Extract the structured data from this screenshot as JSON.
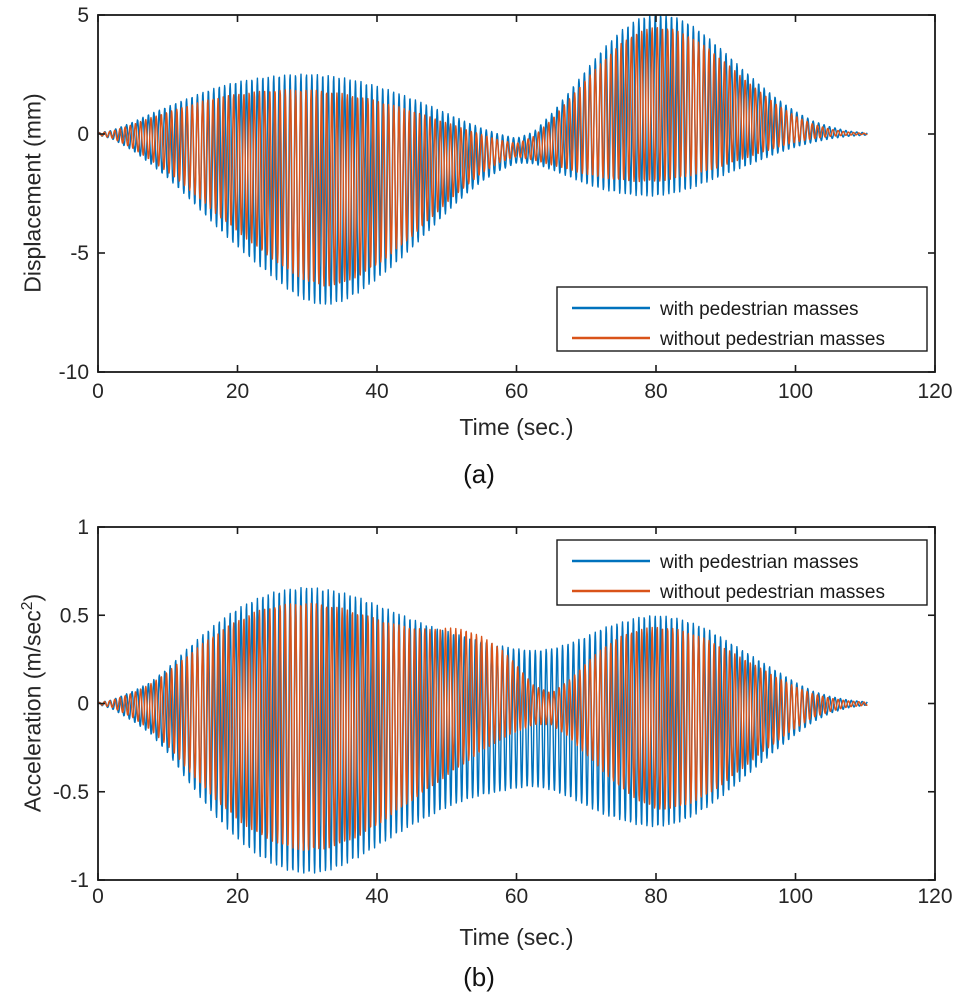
{
  "figure": {
    "background": "#ffffff",
    "axis_color": "#1a1a1a",
    "tick_label_color": "#262626",
    "series_colors": {
      "with_pedestrian_masses": "#0072BD",
      "without_pedestrian_masses": "#D95319"
    }
  },
  "chart_data": [
    {
      "type": "line",
      "panel_label": "(a)",
      "title": "",
      "xlabel": "Time (sec.)",
      "ylabel": "Displacement (mm)",
      "ylabel_parts": {
        "pre": "Displacement (mm)",
        "sup": "",
        "post": ""
      },
      "xlim": [
        0,
        120
      ],
      "ylim": [
        -10,
        5
      ],
      "xticks": [
        0,
        20,
        40,
        60,
        80,
        100,
        120
      ],
      "yticks": [
        -10,
        -5,
        0,
        5
      ],
      "grid": false,
      "legend_position": "bottom-right",
      "signal_model": "y(t) = mean(t) + amplitude(t)*sin(2*pi*freq_hz*t); mean/amplitude from linearly interpolated top/bottom envelopes; response dies out at t = 110 s",
      "envelope_t": [
        0,
        2,
        5,
        7.5,
        10,
        12.5,
        15,
        17.5,
        20,
        22.5,
        25,
        27.5,
        30,
        32.5,
        35,
        37.5,
        40,
        42.5,
        45,
        47.5,
        50,
        52.5,
        55,
        57.5,
        60,
        62.5,
        65,
        67.5,
        70,
        72.5,
        75,
        77.5,
        80,
        82.5,
        85,
        87.5,
        90,
        92.5,
        95,
        97.5,
        100,
        102.5,
        105,
        107.5,
        110
      ],
      "series": [
        {
          "name": "with pedestrian masses",
          "color": "#0072BD",
          "freq_hz": 1.28,
          "envelope_top": [
            0.05,
            0.15,
            0.5,
            0.85,
            1.15,
            1.45,
            1.75,
            2.0,
            2.2,
            2.33,
            2.43,
            2.5,
            2.52,
            2.48,
            2.38,
            2.22,
            2.02,
            1.78,
            1.5,
            1.2,
            0.88,
            0.55,
            0.25,
            0.0,
            -0.18,
            0.1,
            0.85,
            1.75,
            2.7,
            3.6,
            4.35,
            4.85,
            5.05,
            4.95,
            4.6,
            4.05,
            3.4,
            2.7,
            2.05,
            1.45,
            0.95,
            0.55,
            0.3,
            0.13,
            0.05
          ],
          "envelope_bottom": [
            -0.05,
            -0.2,
            -0.7,
            -1.25,
            -1.85,
            -2.55,
            -3.3,
            -4.05,
            -4.75,
            -5.4,
            -6.0,
            -6.6,
            -7.05,
            -7.2,
            -7.05,
            -6.65,
            -6.1,
            -5.5,
            -4.8,
            -4.05,
            -3.3,
            -2.6,
            -2.0,
            -1.55,
            -1.22,
            -1.25,
            -1.5,
            -1.8,
            -2.1,
            -2.35,
            -2.5,
            -2.6,
            -2.62,
            -2.5,
            -2.3,
            -2.0,
            -1.7,
            -1.4,
            -1.1,
            -0.8,
            -0.55,
            -0.35,
            -0.2,
            -0.1,
            -0.05
          ]
        },
        {
          "name": "without pedestrian masses",
          "color": "#D95319",
          "freq_hz": 1.35,
          "envelope_top": [
            0.04,
            0.12,
            0.4,
            0.68,
            0.92,
            1.15,
            1.38,
            1.55,
            1.68,
            1.77,
            1.83,
            1.86,
            1.86,
            1.8,
            1.7,
            1.56,
            1.4,
            1.2,
            0.98,
            0.73,
            0.48,
            0.22,
            -0.02,
            -0.25,
            -0.4,
            -0.1,
            0.6,
            1.45,
            2.3,
            3.1,
            3.8,
            4.3,
            4.5,
            4.4,
            4.08,
            3.6,
            3.0,
            2.35,
            1.75,
            1.2,
            0.75,
            0.42,
            0.2,
            0.08,
            0.03
          ],
          "envelope_bottom": [
            -0.04,
            -0.17,
            -0.6,
            -1.1,
            -1.6,
            -2.2,
            -2.85,
            -3.5,
            -4.1,
            -4.7,
            -5.25,
            -5.8,
            -6.2,
            -6.4,
            -6.3,
            -5.95,
            -5.5,
            -4.95,
            -4.3,
            -3.6,
            -2.9,
            -2.25,
            -1.65,
            -1.2,
            -0.95,
            -1.1,
            -1.3,
            -1.5,
            -1.7,
            -1.85,
            -1.95,
            -2.0,
            -2.0,
            -1.9,
            -1.75,
            -1.55,
            -1.3,
            -1.05,
            -0.8,
            -0.55,
            -0.35,
            -0.2,
            -0.1,
            -0.05,
            -0.02
          ]
        }
      ]
    },
    {
      "type": "line",
      "panel_label": "(b)",
      "title": "",
      "xlabel": "Time (sec.)",
      "ylabel": "Acceleration (m/sec²)",
      "ylabel_parts": {
        "pre": "Acceleration (m/sec",
        "sup": "2",
        "post": ")"
      },
      "xlim": [
        0,
        120
      ],
      "ylim": [
        -1,
        1
      ],
      "xticks": [
        0,
        20,
        40,
        60,
        80,
        100,
        120
      ],
      "yticks": [
        -1,
        -0.5,
        0,
        0.5,
        1
      ],
      "grid": false,
      "legend_position": "top-right",
      "signal_model": "y(t) = mean(t) + amplitude(t)*sin(2*pi*freq_hz*t); mean/amplitude from linearly interpolated top/bottom envelopes; response dies out at t = 110 s",
      "envelope_t": [
        0,
        2,
        5,
        7.5,
        10,
        12.5,
        15,
        17.5,
        20,
        22.5,
        25,
        27.5,
        30,
        32.5,
        35,
        37.5,
        40,
        42.5,
        45,
        47.5,
        50,
        52.5,
        55,
        57.5,
        60,
        62.5,
        65,
        67.5,
        70,
        72.5,
        75,
        77.5,
        80,
        82.5,
        85,
        87.5,
        90,
        92.5,
        95,
        97.5,
        100,
        102.5,
        105,
        107.5,
        110
      ],
      "series": [
        {
          "name": "with pedestrian masses",
          "color": "#0072BD",
          "freq_hz": 1.28,
          "envelope_top": [
            0.005,
            0.02,
            0.07,
            0.12,
            0.2,
            0.3,
            0.39,
            0.47,
            0.54,
            0.59,
            0.63,
            0.65,
            0.66,
            0.65,
            0.63,
            0.6,
            0.56,
            0.52,
            0.48,
            0.44,
            0.41,
            0.38,
            0.35,
            0.33,
            0.31,
            0.3,
            0.31,
            0.34,
            0.38,
            0.43,
            0.46,
            0.49,
            0.5,
            0.49,
            0.46,
            0.42,
            0.36,
            0.3,
            0.24,
            0.18,
            0.12,
            0.07,
            0.04,
            0.02,
            0.01
          ],
          "envelope_bottom": [
            -0.005,
            -0.03,
            -0.1,
            -0.17,
            -0.28,
            -0.42,
            -0.55,
            -0.67,
            -0.77,
            -0.85,
            -0.91,
            -0.95,
            -0.965,
            -0.955,
            -0.92,
            -0.87,
            -0.81,
            -0.75,
            -0.69,
            -0.64,
            -0.59,
            -0.55,
            -0.52,
            -0.5,
            -0.48,
            -0.47,
            -0.49,
            -0.53,
            -0.58,
            -0.63,
            -0.66,
            -0.69,
            -0.7,
            -0.685,
            -0.645,
            -0.585,
            -0.51,
            -0.425,
            -0.34,
            -0.255,
            -0.175,
            -0.105,
            -0.055,
            -0.025,
            -0.01
          ]
        },
        {
          "name": "without pedestrian masses",
          "color": "#D95319",
          "freq_hz": 1.35,
          "envelope_top": [
            0.004,
            0.018,
            0.06,
            0.11,
            0.18,
            0.26,
            0.34,
            0.41,
            0.47,
            0.52,
            0.55,
            0.565,
            0.57,
            0.56,
            0.54,
            0.51,
            0.48,
            0.45,
            0.43,
            0.42,
            0.43,
            0.42,
            0.38,
            0.32,
            0.22,
            0.1,
            0.06,
            0.13,
            0.23,
            0.32,
            0.38,
            0.42,
            0.435,
            0.425,
            0.4,
            0.36,
            0.31,
            0.255,
            0.2,
            0.145,
            0.095,
            0.055,
            0.03,
            0.015,
            0.008
          ],
          "envelope_bottom": [
            -0.004,
            -0.022,
            -0.08,
            -0.15,
            -0.24,
            -0.36,
            -0.47,
            -0.57,
            -0.66,
            -0.73,
            -0.78,
            -0.82,
            -0.835,
            -0.825,
            -0.795,
            -0.75,
            -0.69,
            -0.62,
            -0.55,
            -0.48,
            -0.41,
            -0.34,
            -0.27,
            -0.21,
            -0.16,
            -0.12,
            -0.12,
            -0.19,
            -0.29,
            -0.39,
            -0.48,
            -0.55,
            -0.6,
            -0.595,
            -0.565,
            -0.515,
            -0.445,
            -0.365,
            -0.285,
            -0.21,
            -0.14,
            -0.08,
            -0.045,
            -0.02,
            -0.01
          ]
        }
      ]
    }
  ]
}
